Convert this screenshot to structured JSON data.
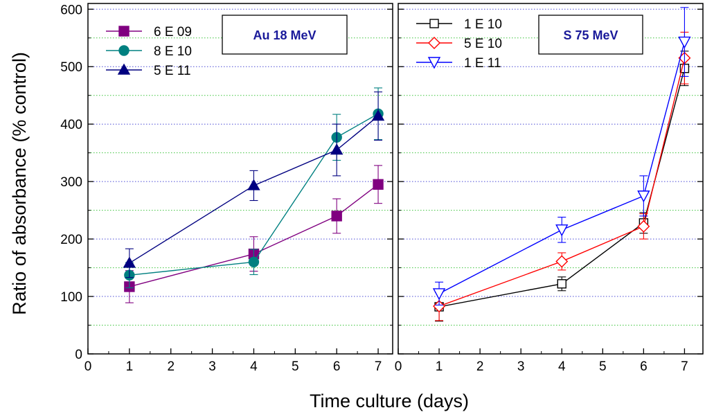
{
  "chart_data": [
    {
      "type": "line",
      "title": "",
      "panel_label": "Au 18 MeV",
      "xlabel": "Time culture (days)",
      "ylabel": "Ratio of absorbance (%   control)",
      "xlim": [
        0,
        7.35
      ],
      "ylim": [
        0,
        610
      ],
      "xticks": [
        0,
        1,
        2,
        3,
        4,
        5,
        6,
        7
      ],
      "yticks": [
        0,
        100,
        200,
        300,
        400,
        500,
        600
      ],
      "grid": true,
      "legend_position": "top-left",
      "series": [
        {
          "name": "6 E 09",
          "color": "#800080",
          "marker": "square-filled",
          "x": [
            1,
            4,
            6,
            7
          ],
          "y": [
            117,
            174,
            240,
            295
          ],
          "err": [
            28,
            30,
            30,
            33
          ]
        },
        {
          "name": "8 E 10",
          "color": "#008080",
          "marker": "circle-filled",
          "x": [
            1,
            4,
            6,
            7
          ],
          "y": [
            137,
            160,
            377,
            418
          ],
          "err": [
            22,
            22,
            40,
            45
          ]
        },
        {
          "name": "5 E 11",
          "color": "#000080",
          "marker": "triangle-up-filled",
          "x": [
            1,
            4,
            6,
            7
          ],
          "y": [
            158,
            293,
            355,
            414
          ],
          "err": [
            25,
            26,
            45,
            42
          ]
        }
      ]
    },
    {
      "type": "line",
      "title": "",
      "panel_label": "S 75 MeV",
      "xlabel": "Time culture (days)",
      "ylabel": "",
      "xlim": [
        0,
        7.45
      ],
      "ylim": [
        0,
        610
      ],
      "xticks": [
        0,
        1,
        2,
        3,
        4,
        5,
        6,
        7
      ],
      "yticks": [
        0,
        100,
        200,
        300,
        400,
        500,
        600
      ],
      "grid": true,
      "legend_position": "top-left",
      "series": [
        {
          "name": "1 E 10",
          "color": "#000000",
          "marker": "square-open",
          "x": [
            1,
            4,
            6,
            7
          ],
          "y": [
            82,
            122,
            228,
            497
          ],
          "err": [
            25,
            12,
            18,
            30
          ]
        },
        {
          "name": "5 E 10",
          "color": "#ff0000",
          "marker": "diamond-open",
          "x": [
            1,
            4,
            6,
            7
          ],
          "y": [
            83,
            161,
            222,
            515
          ],
          "err": [
            25,
            15,
            22,
            45
          ]
        },
        {
          "name": "1 E 11",
          "color": "#0000ff",
          "marker": "triangle-down-open",
          "x": [
            1,
            4,
            6,
            7
          ],
          "y": [
            105,
            216,
            275,
            543
          ],
          "err": [
            20,
            22,
            35,
            60
          ]
        }
      ]
    }
  ]
}
